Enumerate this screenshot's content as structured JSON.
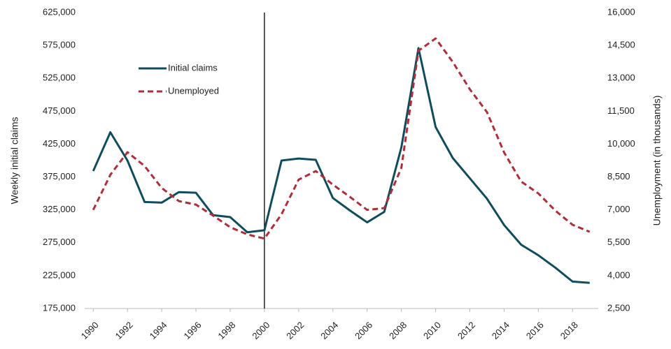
{
  "chart_data": {
    "type": "line",
    "x": [
      1990,
      1991,
      1992,
      1993,
      1994,
      1995,
      1996,
      1997,
      1998,
      1999,
      2000,
      2001,
      2002,
      2003,
      2004,
      2005,
      2006,
      2007,
      2008,
      2009,
      2010,
      2011,
      2012,
      2013,
      2014,
      2015,
      2016,
      2017,
      2018,
      2019
    ],
    "xlim": [
      1989.5,
      2019.5
    ],
    "xticks": [
      1990,
      1992,
      1994,
      1996,
      1998,
      2000,
      2002,
      2004,
      2006,
      2008,
      2010,
      2012,
      2014,
      2016,
      2018
    ],
    "y_label": "Weekly initial claims",
    "y2_label": "Unemployment (in thousands)",
    "ylim": [
      175000,
      625000
    ],
    "yticks": [
      {
        "value": 175000,
        "label": "175,000"
      },
      {
        "value": 225000,
        "label": "225,000"
      },
      {
        "value": 275000,
        "label": "275,000"
      },
      {
        "value": 325000,
        "label": "325,000"
      },
      {
        "value": 375000,
        "label": "375,000"
      },
      {
        "value": 425000,
        "label": "425,000"
      },
      {
        "value": 475000,
        "label": "475,000"
      },
      {
        "value": 525000,
        "label": "525,000"
      },
      {
        "value": 575000,
        "label": "575,000"
      },
      {
        "value": 625000,
        "label": "625,000"
      }
    ],
    "y2lim": [
      2500,
      16000
    ],
    "y2ticks": [
      {
        "value": 2500,
        "label": "2,500"
      },
      {
        "value": 4000,
        "label": "4,000"
      },
      {
        "value": 5500,
        "label": "5,500"
      },
      {
        "value": 7000,
        "label": "7,000"
      },
      {
        "value": 8500,
        "label": "8,500"
      },
      {
        "value": 10000,
        "label": "10,000"
      },
      {
        "value": 11500,
        "label": "11,500"
      },
      {
        "value": 13000,
        "label": "13,000"
      },
      {
        "value": 14500,
        "label": "14,500"
      },
      {
        "value": 16000,
        "label": "16,000"
      }
    ],
    "vline": 2000,
    "series": [
      {
        "name": "Initial claims",
        "color": "#0f4d5d",
        "dashed": false,
        "values": [
          384000,
          443000,
          400000,
          337000,
          336000,
          352000,
          351000,
          317000,
          314000,
          291000,
          294000,
          400000,
          403000,
          401000,
          343000,
          324000,
          306000,
          322000,
          420000,
          571000,
          451000,
          404000,
          373000,
          342000,
          302000,
          272000,
          256000,
          237000,
          216000,
          214000
        ]
      },
      {
        "name": "Unemployed",
        "color": "#b22d3a",
        "dashed": true,
        "axis": "y2",
        "values": [
          7000,
          8600,
          9630,
          9000,
          8000,
          7400,
          7240,
          6740,
          6210,
          5880,
          5690,
          6800,
          8380,
          8770,
          8150,
          7590,
          7000,
          7080,
          8920,
          14260,
          14820,
          13750,
          12500,
          11460,
          9620,
          8290,
          7750,
          6960,
          6320,
          6000
        ]
      }
    ]
  }
}
